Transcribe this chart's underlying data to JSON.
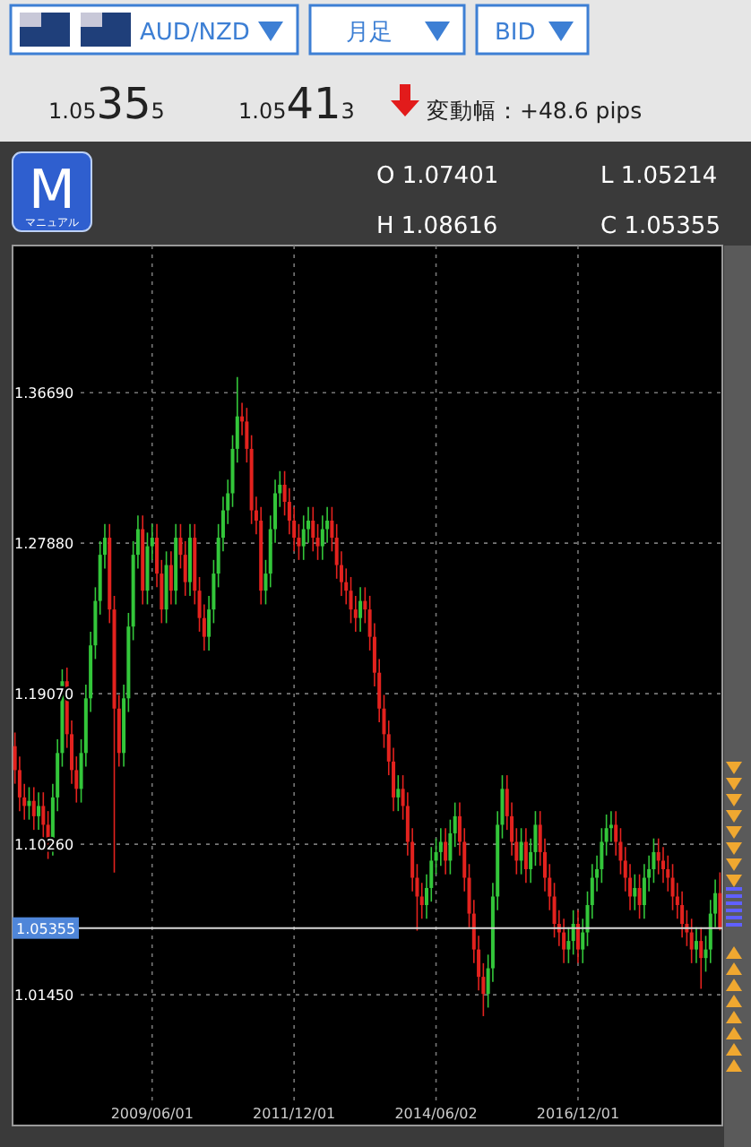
{
  "chart_data": {
    "type": "candlestick",
    "annotations": [
      "AUD/NZD",
      "月足",
      "BID",
      "1.05355",
      "1.05413",
      "変動幅：+48.6 pips",
      "O 1.07401",
      "L 1.05214",
      "H 1.08616",
      "C 1.05355",
      "M",
      "マニュアル"
    ],
    "categories": [
      null,
      null,
      null,
      null,
      null,
      null,
      null,
      null,
      null,
      null,
      null,
      null,
      null,
      null,
      null,
      null,
      null,
      null,
      null,
      null,
      null,
      null,
      null,
      null,
      null,
      null,
      null,
      null,
      null,
      "2009/06/01",
      null,
      null,
      null,
      null,
      null,
      null,
      null,
      null,
      null,
      null,
      null,
      null,
      null,
      null,
      null,
      null,
      null,
      null,
      null,
      null,
      null,
      null,
      null,
      null,
      null,
      null,
      null,
      null,
      null,
      "2011/12/01",
      null,
      null,
      null,
      null,
      null,
      null,
      null,
      null,
      null,
      null,
      null,
      null,
      null,
      null,
      null,
      null,
      null,
      null,
      null,
      null,
      null,
      null,
      null,
      null,
      null,
      null,
      null,
      null,
      null,
      "2014/06/02",
      null,
      null,
      null,
      null,
      null,
      null,
      null,
      null,
      null,
      null,
      null,
      null,
      null,
      null,
      null,
      null,
      null,
      null,
      null,
      null,
      null,
      null,
      null,
      null,
      null,
      null,
      null,
      null,
      null,
      "2016/12/01",
      null,
      null,
      null,
      null,
      null,
      null,
      null,
      null,
      null,
      null,
      null,
      null,
      null,
      null,
      null,
      null,
      null,
      null,
      null,
      null,
      null,
      null,
      null,
      null,
      null,
      null,
      null,
      null,
      null,
      null
    ],
    "ohlc": [
      [
        1.16,
        1.168,
        1.138,
        1.146
      ],
      [
        1.146,
        1.154,
        1.122,
        1.13
      ],
      [
        1.13,
        1.138,
        1.117,
        1.125
      ],
      [
        1.125,
        1.136,
        1.117,
        1.128
      ],
      [
        1.128,
        1.136,
        1.111,
        1.119
      ],
      [
        1.119,
        1.133,
        1.111,
        1.125
      ],
      [
        1.125,
        1.133,
        1.106,
        1.114
      ],
      [
        1.114,
        1.122,
        1.094,
        1.104
      ],
      [
        1.104,
        1.138,
        1.096,
        1.13
      ],
      [
        1.13,
        1.164,
        1.122,
        1.156
      ],
      [
        1.156,
        1.205,
        1.148,
        1.198
      ],
      [
        1.198,
        1.206,
        1.159,
        1.167
      ],
      [
        1.167,
        1.175,
        1.138,
        1.146
      ],
      [
        1.146,
        1.154,
        1.127,
        1.135
      ],
      [
        1.135,
        1.164,
        1.127,
        1.156
      ],
      [
        1.156,
        1.196,
        1.148,
        1.188
      ],
      [
        1.188,
        1.227,
        1.18,
        1.219
      ],
      [
        1.219,
        1.253,
        1.211,
        1.245
      ],
      [
        1.245,
        1.28,
        1.237,
        1.272
      ],
      [
        1.272,
        1.29,
        1.264,
        1.282
      ],
      [
        1.282,
        1.29,
        1.232,
        1.24
      ],
      [
        1.24,
        1.248,
        1.086,
        1.182
      ],
      [
        1.182,
        1.19,
        1.148,
        1.156
      ],
      [
        1.156,
        1.196,
        1.148,
        1.188
      ],
      [
        1.188,
        1.238,
        1.18,
        1.23
      ],
      [
        1.23,
        1.28,
        1.222,
        1.272
      ],
      [
        1.272,
        1.295,
        1.264,
        1.287
      ],
      [
        1.287,
        1.295,
        1.243,
        1.251
      ],
      [
        1.251,
        1.285,
        1.243,
        1.277
      ],
      [
        1.277,
        1.29,
        1.269,
        1.282
      ],
      [
        1.282,
        1.29,
        1.253,
        1.261
      ],
      [
        1.261,
        1.269,
        1.232,
        1.24
      ],
      [
        1.24,
        1.274,
        1.232,
        1.266
      ],
      [
        1.266,
        1.274,
        1.243,
        1.251
      ],
      [
        1.251,
        1.29,
        1.243,
        1.282
      ],
      [
        1.282,
        1.29,
        1.264,
        1.272
      ],
      [
        1.272,
        1.28,
        1.248,
        1.256
      ],
      [
        1.256,
        1.29,
        1.248,
        1.282
      ],
      [
        1.282,
        1.29,
        1.243,
        1.251
      ],
      [
        1.251,
        1.259,
        1.227,
        1.235
      ],
      [
        1.235,
        1.243,
        1.216,
        1.224
      ],
      [
        1.224,
        1.248,
        1.216,
        1.24
      ],
      [
        1.24,
        1.269,
        1.232,
        1.261
      ],
      [
        1.261,
        1.29,
        1.253,
        1.282
      ],
      [
        1.282,
        1.306,
        1.274,
        1.298
      ],
      [
        1.298,
        1.316,
        1.29,
        1.308
      ],
      [
        1.308,
        1.342,
        1.3,
        1.334
      ],
      [
        1.334,
        1.376,
        1.326,
        1.353
      ],
      [
        1.353,
        1.361,
        1.342,
        1.35
      ],
      [
        1.35,
        1.358,
        1.326,
        1.334
      ],
      [
        1.334,
        1.342,
        1.29,
        1.298
      ],
      [
        1.298,
        1.306,
        1.284,
        1.292
      ],
      [
        1.292,
        1.3,
        1.243,
        1.251
      ],
      [
        1.251,
        1.269,
        1.243,
        1.261
      ],
      [
        1.261,
        1.295,
        1.253,
        1.287
      ],
      [
        1.287,
        1.316,
        1.279,
        1.308
      ],
      [
        1.308,
        1.321,
        1.3,
        1.313
      ],
      [
        1.313,
        1.321,
        1.295,
        1.303
      ],
      [
        1.303,
        1.311,
        1.284,
        1.292
      ],
      [
        1.292,
        1.3,
        1.274,
        1.282
      ],
      [
        1.282,
        1.29,
        1.269,
        1.277
      ],
      [
        1.277,
        1.295,
        1.269,
        1.287
      ],
      [
        1.287,
        1.3,
        1.279,
        1.292
      ],
      [
        1.292,
        1.3,
        1.274,
        1.282
      ],
      [
        1.282,
        1.29,
        1.269,
        1.277
      ],
      [
        1.277,
        1.295,
        1.269,
        1.287
      ],
      [
        1.287,
        1.3,
        1.279,
        1.292
      ],
      [
        1.292,
        1.3,
        1.274,
        1.282
      ],
      [
        1.282,
        1.29,
        1.258,
        1.266
      ],
      [
        1.266,
        1.274,
        1.248,
        1.256
      ],
      [
        1.256,
        1.264,
        1.243,
        1.251
      ],
      [
        1.251,
        1.259,
        1.232,
        1.24
      ],
      [
        1.24,
        1.248,
        1.227,
        1.235
      ],
      [
        1.235,
        1.253,
        1.227,
        1.245
      ],
      [
        1.245,
        1.253,
        1.232,
        1.24
      ],
      [
        1.24,
        1.248,
        1.216,
        1.224
      ],
      [
        1.224,
        1.232,
        1.195,
        1.203
      ],
      [
        1.203,
        1.211,
        1.174,
        1.182
      ],
      [
        1.182,
        1.19,
        1.159,
        1.167
      ],
      [
        1.167,
        1.175,
        1.143,
        1.151
      ],
      [
        1.151,
        1.159,
        1.122,
        1.13
      ],
      [
        1.13,
        1.143,
        1.122,
        1.135
      ],
      [
        1.135,
        1.143,
        1.117,
        1.125
      ],
      [
        1.125,
        1.133,
        1.096,
        1.104
      ],
      [
        1.104,
        1.112,
        1.075,
        1.083
      ],
      [
        1.083,
        1.091,
        1.052,
        1.072
      ],
      [
        1.072,
        1.08,
        1.059,
        1.067
      ],
      [
        1.067,
        1.085,
        1.059,
        1.077
      ],
      [
        1.077,
        1.101,
        1.069,
        1.093
      ],
      [
        1.093,
        1.106,
        1.085,
        1.098
      ],
      [
        1.098,
        1.112,
        1.09,
        1.104
      ],
      [
        1.104,
        1.112,
        1.085,
        1.093
      ],
      [
        1.093,
        1.117,
        1.085,
        1.109
      ],
      [
        1.109,
        1.127,
        1.101,
        1.119
      ],
      [
        1.119,
        1.127,
        1.096,
        1.104
      ],
      [
        1.104,
        1.112,
        1.075,
        1.083
      ],
      [
        1.083,
        1.091,
        1.054,
        1.062
      ],
      [
        1.062,
        1.07,
        1.033,
        1.041
      ],
      [
        1.041,
        1.049,
        1.017,
        1.025
      ],
      [
        1.025,
        1.033,
        1.002,
        1.015
      ],
      [
        1.015,
        1.038,
        1.007,
        1.03
      ],
      [
        1.03,
        1.08,
        1.022,
        1.072
      ],
      [
        1.072,
        1.122,
        1.064,
        1.114
      ],
      [
        1.114,
        1.143,
        1.106,
        1.135
      ],
      [
        1.135,
        1.143,
        1.111,
        1.119
      ],
      [
        1.119,
        1.127,
        1.096,
        1.104
      ],
      [
        1.104,
        1.112,
        1.085,
        1.093
      ],
      [
        1.093,
        1.112,
        1.085,
        1.104
      ],
      [
        1.104,
        1.112,
        1.08,
        1.088
      ],
      [
        1.088,
        1.106,
        1.08,
        1.098
      ],
      [
        1.098,
        1.122,
        1.09,
        1.114
      ],
      [
        1.114,
        1.122,
        1.09,
        1.098
      ],
      [
        1.098,
        1.106,
        1.075,
        1.083
      ],
      [
        1.083,
        1.091,
        1.064,
        1.072
      ],
      [
        1.072,
        1.08,
        1.048,
        1.056
      ],
      [
        1.056,
        1.064,
        1.043,
        1.051
      ],
      [
        1.051,
        1.059,
        1.033,
        1.041
      ],
      [
        1.041,
        1.054,
        1.033,
        1.046
      ],
      [
        1.046,
        1.064,
        1.038,
        1.056
      ],
      [
        1.056,
        1.064,
        1.033,
        1.041
      ],
      [
        1.041,
        1.059,
        1.033,
        1.051
      ],
      [
        1.051,
        1.075,
        1.043,
        1.067
      ],
      [
        1.067,
        1.091,
        1.059,
        1.083
      ],
      [
        1.083,
        1.096,
        1.075,
        1.088
      ],
      [
        1.088,
        1.112,
        1.08,
        1.104
      ],
      [
        1.104,
        1.12,
        1.096,
        1.112
      ],
      [
        1.112,
        1.122,
        1.104,
        1.114
      ],
      [
        1.114,
        1.122,
        1.096,
        1.104
      ],
      [
        1.104,
        1.112,
        1.085,
        1.093
      ],
      [
        1.093,
        1.101,
        1.075,
        1.083
      ],
      [
        1.083,
        1.091,
        1.064,
        1.072
      ],
      [
        1.072,
        1.085,
        1.064,
        1.077
      ],
      [
        1.077,
        1.085,
        1.059,
        1.067
      ],
      [
        1.067,
        1.091,
        1.059,
        1.083
      ],
      [
        1.083,
        1.096,
        1.075,
        1.088
      ],
      [
        1.088,
        1.106,
        1.08,
        1.098
      ],
      [
        1.098,
        1.106,
        1.085,
        1.093
      ],
      [
        1.093,
        1.101,
        1.08,
        1.088
      ],
      [
        1.088,
        1.096,
        1.075,
        1.083
      ],
      [
        1.083,
        1.091,
        1.064,
        1.072
      ],
      [
        1.072,
        1.08,
        1.059,
        1.067
      ],
      [
        1.067,
        1.075,
        1.048,
        1.056
      ],
      [
        1.056,
        1.064,
        1.043,
        1.051
      ],
      [
        1.051,
        1.059,
        1.033,
        1.041
      ],
      [
        1.041,
        1.054,
        1.033,
        1.046
      ],
      [
        1.046,
        1.054,
        1.018,
        1.036
      ],
      [
        1.036,
        1.049,
        1.028,
        1.041
      ],
      [
        1.041,
        1.07,
        1.033,
        1.062
      ],
      [
        1.062,
        1.082,
        1.054,
        1.074
      ],
      [
        1.07401,
        1.08616,
        1.05214,
        1.05355
      ]
    ],
    "ylim": [
      0.938,
      1.453
    ],
    "yticks": [
      {
        "value": 1.0145,
        "label": "1.01450"
      },
      {
        "value": 1.1026,
        "label": "1.10260"
      },
      {
        "value": 1.1907,
        "label": "1.19070"
      },
      {
        "value": 1.2788,
        "label": "1.27880"
      },
      {
        "value": 1.3669,
        "label": "1.36690"
      }
    ],
    "ref_lines": [
      {
        "axis": "y",
        "value": 1.05355,
        "label": "1.05355",
        "color": "#d8d8d8"
      }
    ],
    "grid": true
  }
}
